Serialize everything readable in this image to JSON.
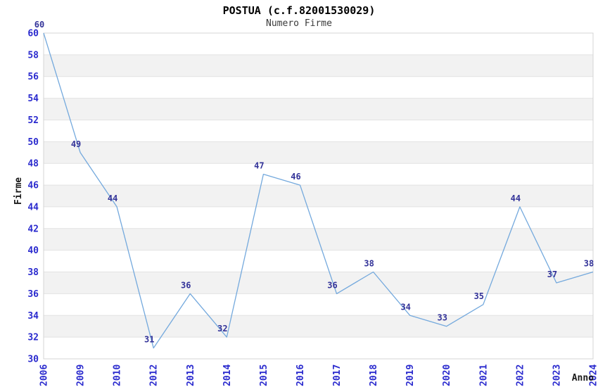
{
  "title": "POSTUA (c.f.82001530029)",
  "subtitle": "Numero Firme",
  "chart_data": {
    "type": "line",
    "x": [
      "2006",
      "2009",
      "2010",
      "2012",
      "2013",
      "2014",
      "2015",
      "2016",
      "2017",
      "2018",
      "2019",
      "2020",
      "2021",
      "2022",
      "2023",
      "2024"
    ],
    "values": [
      60,
      49,
      44,
      31,
      36,
      32,
      47,
      46,
      36,
      38,
      34,
      33,
      35,
      44,
      37,
      38
    ],
    "title": "POSTUA (c.f.82001530029)",
    "subtitle": "Numero Firme",
    "xlabel": "Anno",
    "ylabel": "Firme",
    "ylim": [
      30,
      60
    ],
    "ytick_step": 2,
    "grid": true,
    "legend_position": "none",
    "colors": {
      "line": "#74a9dd",
      "axis_tick_label": "#2a2ace",
      "point_label": "#333399",
      "band_fill": "#f2f2f2",
      "gridline": "#e2e2e2",
      "plot_border": "#d4d4d4",
      "axis_title": "#1a1a1a",
      "background": "#ffffff"
    }
  }
}
